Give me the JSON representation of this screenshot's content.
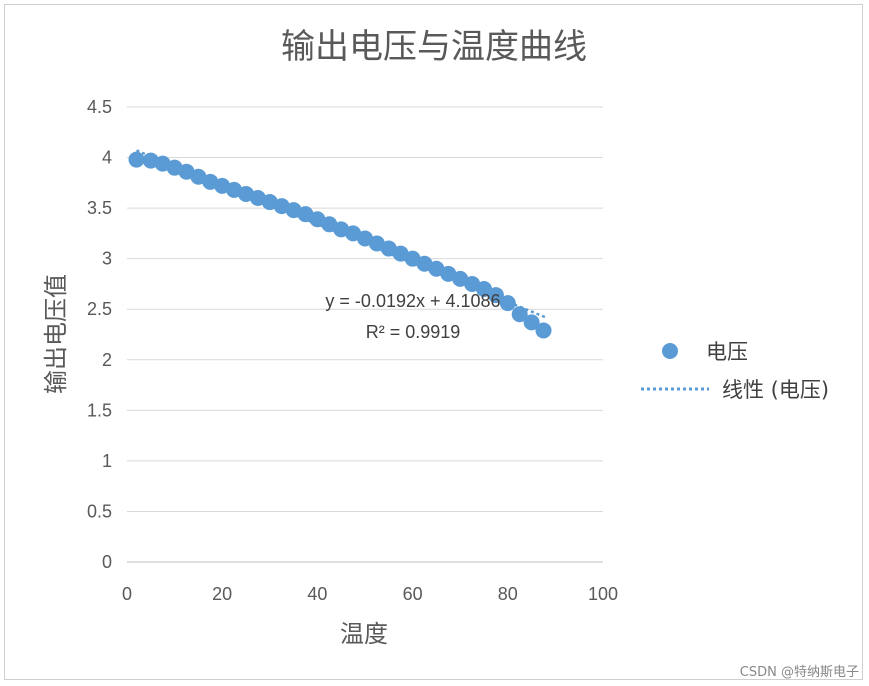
{
  "chart_data": {
    "type": "scatter",
    "title": "输出电压与温度曲线",
    "xlabel": "温度",
    "ylabel": "输出电压值",
    "xlim": [
      0,
      100
    ],
    "ylim": [
      0,
      4.5
    ],
    "x_ticks": [
      "0",
      "20",
      "40",
      "60",
      "80",
      "100"
    ],
    "y_ticks": [
      "0",
      "0.5",
      "1",
      "1.5",
      "2",
      "2.5",
      "3",
      "3.5",
      "4",
      "4.5"
    ],
    "grid": true,
    "legend_position": "right",
    "series": [
      {
        "name": "电压",
        "color": "#5b9bd5",
        "x": [
          2,
          5,
          7.5,
          10,
          12.5,
          15,
          17.5,
          20,
          22.5,
          25,
          27.5,
          30,
          32.5,
          35,
          37.5,
          40,
          42.5,
          45,
          47.5,
          50,
          52.5,
          55,
          57.5,
          60,
          62.5,
          65,
          67.5,
          70,
          72.5,
          75,
          77.5,
          80,
          82.5,
          85,
          87.5
        ],
        "y": [
          3.98,
          3.97,
          3.94,
          3.9,
          3.86,
          3.81,
          3.76,
          3.72,
          3.68,
          3.64,
          3.6,
          3.56,
          3.52,
          3.48,
          3.44,
          3.39,
          3.34,
          3.29,
          3.25,
          3.2,
          3.15,
          3.1,
          3.05,
          3.0,
          2.95,
          2.9,
          2.85,
          2.8,
          2.75,
          2.7,
          2.64,
          2.56,
          2.45,
          2.37,
          2.29
        ]
      }
    ],
    "trendline": {
      "name": "线性 (电压)",
      "color": "#5b9bd5",
      "slope": -0.0192,
      "intercept": 4.1086,
      "x_range": [
        2,
        88
      ],
      "equation": "y = -0.0192x + 4.1086",
      "r2": "R² = 0.9919"
    }
  },
  "watermark": "CSDN @特纳斯电子"
}
